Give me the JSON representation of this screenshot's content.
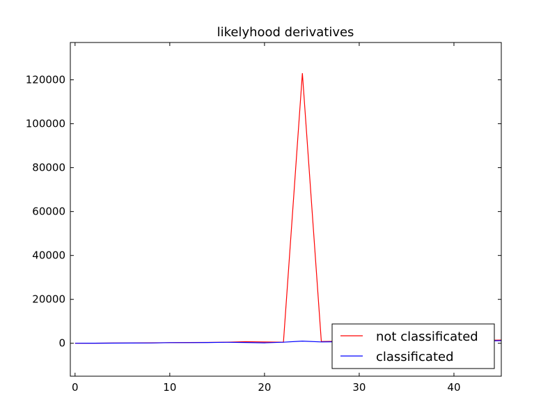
{
  "chart_data": {
    "type": "line",
    "title": "likelyhood derivatives",
    "xlabel": "",
    "ylabel": "",
    "xlim": [
      -0.5,
      45
    ],
    "ylim": [
      -15000,
      137000
    ],
    "xticks": [
      0,
      10,
      20,
      30,
      40
    ],
    "yticks": [
      0,
      20000,
      40000,
      60000,
      80000,
      100000,
      120000
    ],
    "xtick_labels": [
      "0",
      "10",
      "20",
      "30",
      "40"
    ],
    "ytick_labels": [
      "0",
      "20000",
      "40000",
      "60000",
      "80000",
      "100000",
      "120000"
    ],
    "grid": false,
    "legend_position": "lower-right",
    "x": [
      0,
      2,
      4,
      6,
      8,
      10,
      12,
      14,
      16,
      18,
      20,
      22,
      24,
      26,
      28,
      30,
      32,
      34,
      36,
      38,
      40,
      42,
      44,
      46
    ],
    "series": [
      {
        "name": "not classificated",
        "color": "#ff0000",
        "values": [
          0,
          50,
          100,
          150,
          200,
          300,
          350,
          400,
          500,
          700,
          600,
          500,
          123000,
          800,
          900,
          1000,
          1050,
          1100,
          1150,
          1200,
          1250,
          1300,
          1400,
          1500
        ]
      },
      {
        "name": "classificated",
        "color": "#0000ff",
        "values": [
          0,
          30,
          60,
          100,
          150,
          300,
          300,
          350,
          450,
          350,
          200,
          500,
          1000,
          600,
          700,
          800,
          850,
          900,
          950,
          1000,
          1050,
          1100,
          1150,
          1200
        ]
      }
    ]
  }
}
